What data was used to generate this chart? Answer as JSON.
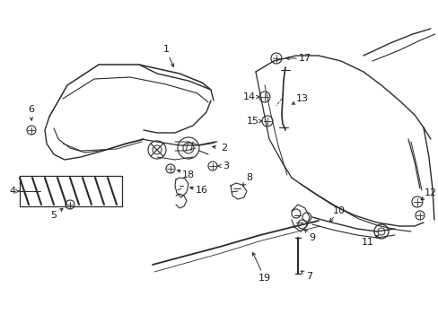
{
  "background_color": "#ffffff",
  "line_color": "#2a2a2a",
  "text_color": "#1a1a1a",
  "figsize": [
    4.89,
    3.6
  ],
  "dpi": 100
}
